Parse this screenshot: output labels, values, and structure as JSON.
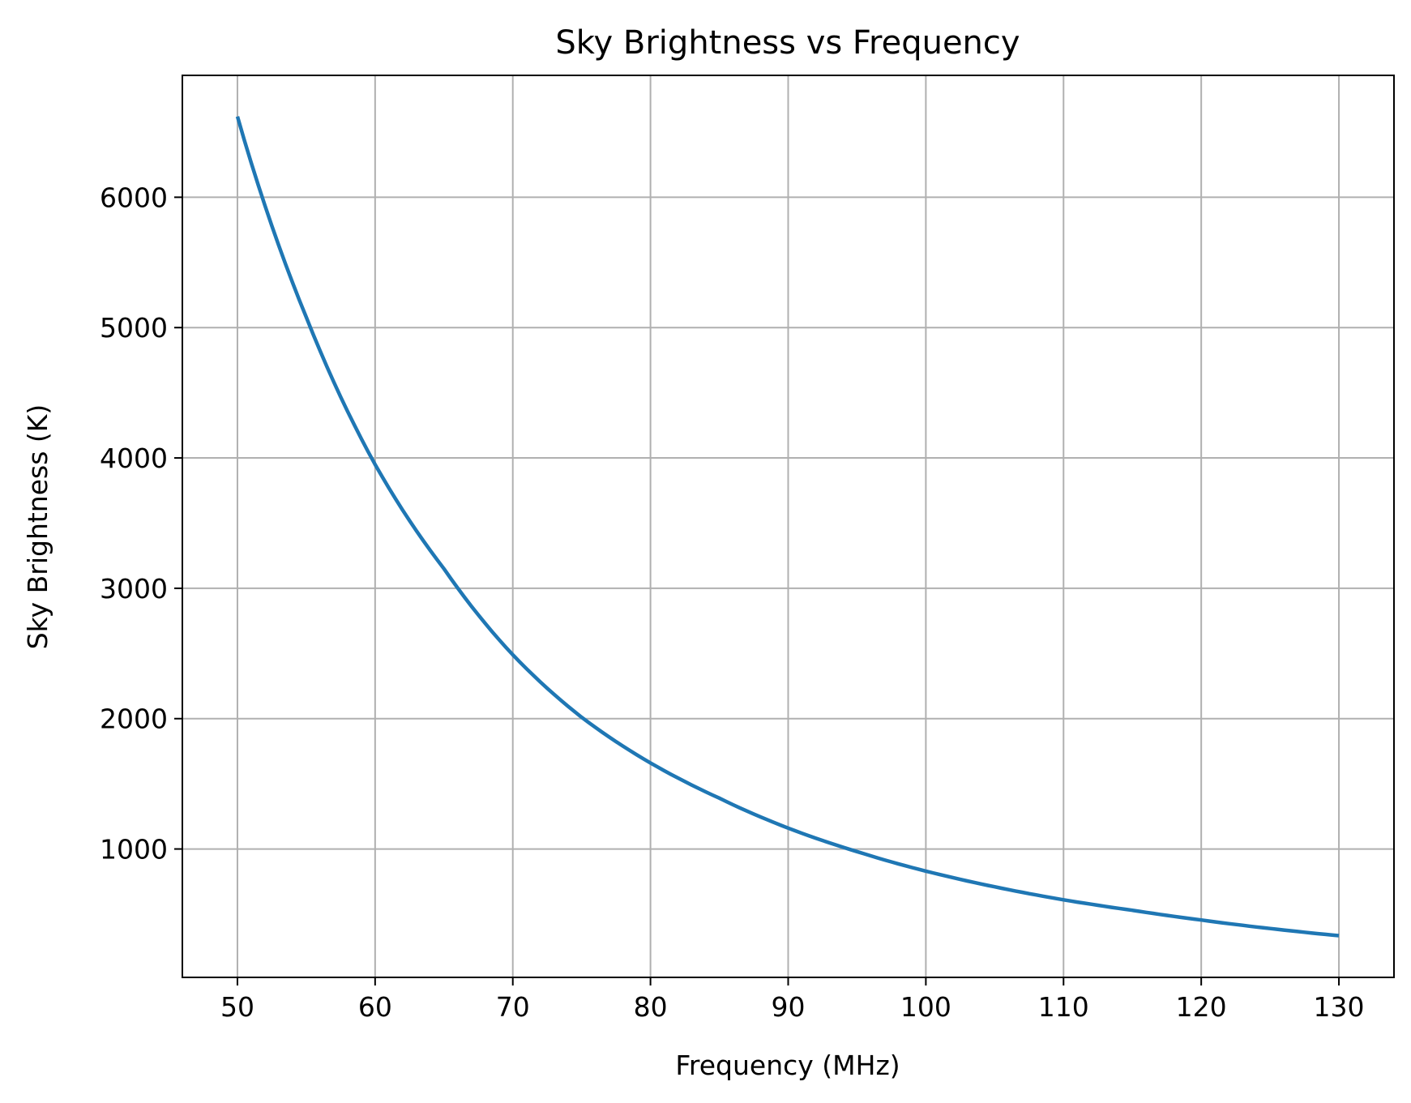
{
  "chart_data": {
    "type": "line",
    "title": "Sky Brightness vs Frequency",
    "xlabel": "Frequency (MHz)",
    "ylabel": "Sky Brightness (K)",
    "xlim": [
      46,
      134
    ],
    "ylim": [
      15,
      6935
    ],
    "xticks": [
      50,
      60,
      70,
      80,
      90,
      100,
      110,
      120,
      130
    ],
    "yticks": [
      1000,
      2000,
      3000,
      4000,
      5000,
      6000
    ],
    "grid": true,
    "series": [
      {
        "color": "#1f77b4",
        "x": [
          50,
          55,
          60,
          65,
          70,
          75,
          80,
          85,
          90,
          95,
          100,
          105,
          110,
          115,
          120,
          125,
          130
        ],
        "y": [
          6620,
          5080,
          3950,
          3150,
          2490,
          2010,
          1660,
          1390,
          1160,
          980,
          830,
          710,
          610,
          530,
          455,
          390,
          335
        ]
      }
    ]
  }
}
